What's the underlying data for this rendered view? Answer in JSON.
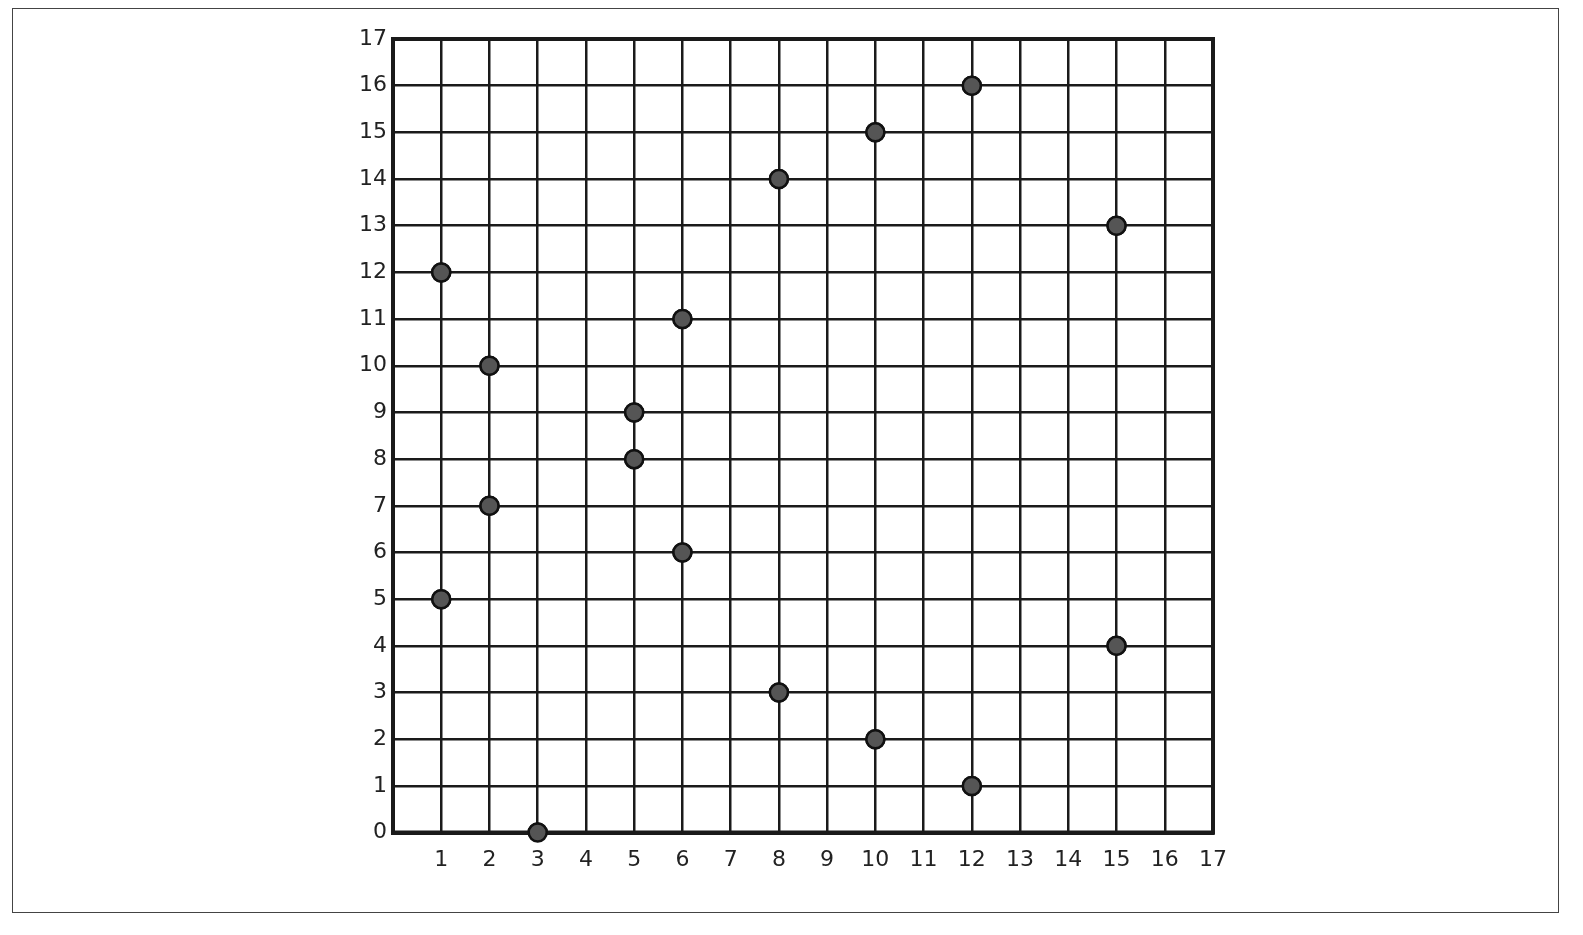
{
  "chart_data": {
    "type": "scatter",
    "x": [
      1,
      1,
      2,
      2,
      3,
      5,
      5,
      6,
      6,
      8,
      8,
      10,
      10,
      12,
      12,
      15,
      15
    ],
    "values": [
      12,
      5,
      10,
      7,
      0,
      9,
      8,
      11,
      6,
      14,
      3,
      15,
      2,
      16,
      1,
      13,
      4
    ],
    "color": "#555555",
    "marker": "circle",
    "grid": true,
    "xlim": [
      0,
      17
    ],
    "ylim": [
      0,
      17
    ],
    "xticks": [
      {
        "value": 0,
        "label": null
      },
      1,
      2,
      3,
      4,
      5,
      6,
      7,
      8,
      9,
      10,
      11,
      12,
      13,
      14,
      15,
      16,
      17
    ],
    "yticks": [
      0,
      1,
      2,
      3,
      4,
      5,
      6,
      7,
      8,
      9,
      10,
      11,
      12,
      13,
      14,
      15,
      16,
      17
    ]
  }
}
